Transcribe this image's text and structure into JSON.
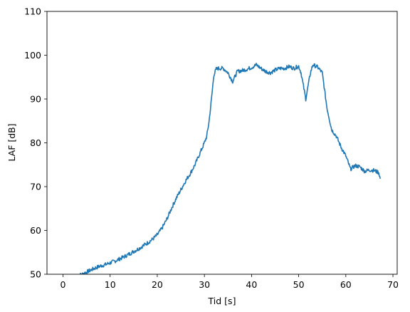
{
  "chart_data": {
    "type": "line",
    "title": "",
    "xlabel": "Tid [s]",
    "ylabel": "LAF [dB]",
    "xlim": [
      -3.4,
      70.9
    ],
    "ylim": [
      50,
      110
    ],
    "xticks": [
      0,
      10,
      20,
      30,
      40,
      50,
      60,
      70
    ],
    "yticks": [
      50,
      60,
      70,
      80,
      90,
      100,
      110
    ],
    "grid": false,
    "legend": "none",
    "series": [
      {
        "color": "#1f77b4",
        "x": [
          3.0,
          4.0,
          5.0,
          6.0,
          7.0,
          8.0,
          9.0,
          10.0,
          11.0,
          12.0,
          13.0,
          14.0,
          15.0,
          16.0,
          17.0,
          18.0,
          19.0,
          20.0,
          21.0,
          22.0,
          23.0,
          24.0,
          25.0,
          26.0,
          27.0,
          28.0,
          29.0,
          30.0,
          30.5,
          31.0,
          31.5,
          32.0,
          32.5,
          33.0,
          34.0,
          35.0,
          36.0,
          37.0,
          38.0,
          39.0,
          40.0,
          41.0,
          42.0,
          43.0,
          44.0,
          45.0,
          46.0,
          47.0,
          48.0,
          49.0,
          50.0,
          50.5,
          51.0,
          51.5,
          52.0,
          52.5,
          53.0,
          54.0,
          55.0,
          56.0,
          57.0,
          58.0,
          59.0,
          60.0,
          61.0,
          62.0,
          63.0,
          64.0,
          65.0,
          66.0,
          67.0,
          67.3
        ],
        "y": [
          49.6,
          50.0,
          50.5,
          51.0,
          51.5,
          51.9,
          52.2,
          52.6,
          53.0,
          53.5,
          54.0,
          54.6,
          55.2,
          55.8,
          56.5,
          57.2,
          58.0,
          59.0,
          60.5,
          62.5,
          65.0,
          67.3,
          69.3,
          71.3,
          73.0,
          75.0,
          77.5,
          80.0,
          81.5,
          85.0,
          90.0,
          95.5,
          96.8,
          97.0,
          97.0,
          96.0,
          94.0,
          96.3,
          96.5,
          96.8,
          97.2,
          97.8,
          97.0,
          96.3,
          96.0,
          96.6,
          97.0,
          97.0,
          97.4,
          97.0,
          97.5,
          96.0,
          93.0,
          90.0,
          93.0,
          96.0,
          97.8,
          97.3,
          96.0,
          88.0,
          83.0,
          81.5,
          79.0,
          77.0,
          74.0,
          74.8,
          74.5,
          73.5,
          73.8,
          73.7,
          73.2,
          71.8
        ]
      }
    ]
  }
}
